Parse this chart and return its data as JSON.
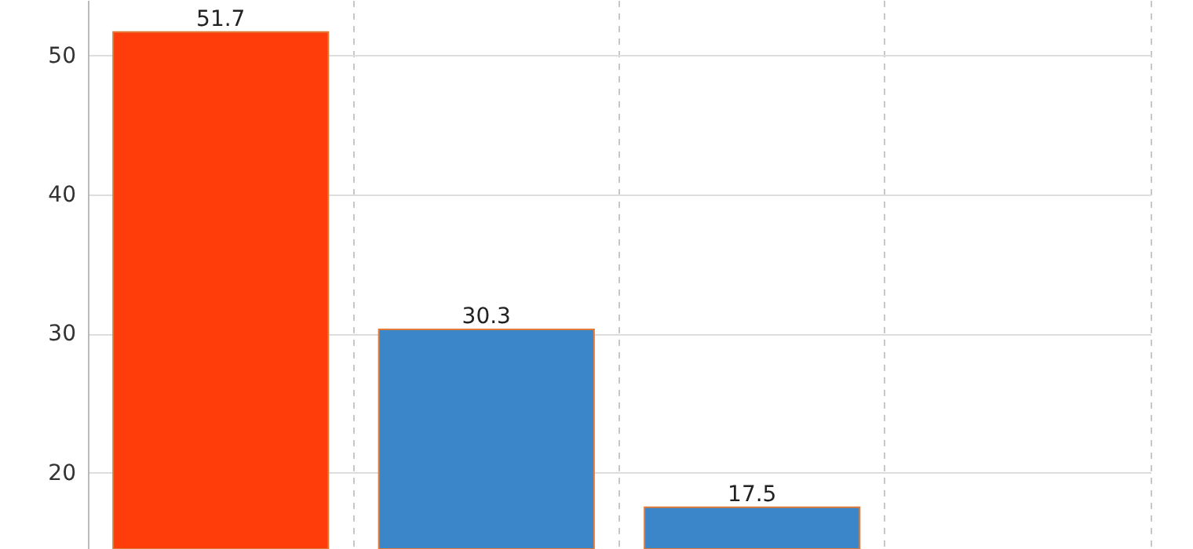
{
  "chart_data": {
    "type": "bar",
    "categories": [
      null,
      null,
      null,
      null
    ],
    "values": [
      51.7,
      30.3,
      17.5,
      null
    ],
    "colors": [
      "#ff3d0a",
      "#3a86c8",
      "#3a86c8",
      "#3a86c8"
    ],
    "ylim": [
      14.5,
      54
    ],
    "yticks": [
      20,
      30,
      40,
      50
    ],
    "grid": true,
    "data_labels": true
  }
}
